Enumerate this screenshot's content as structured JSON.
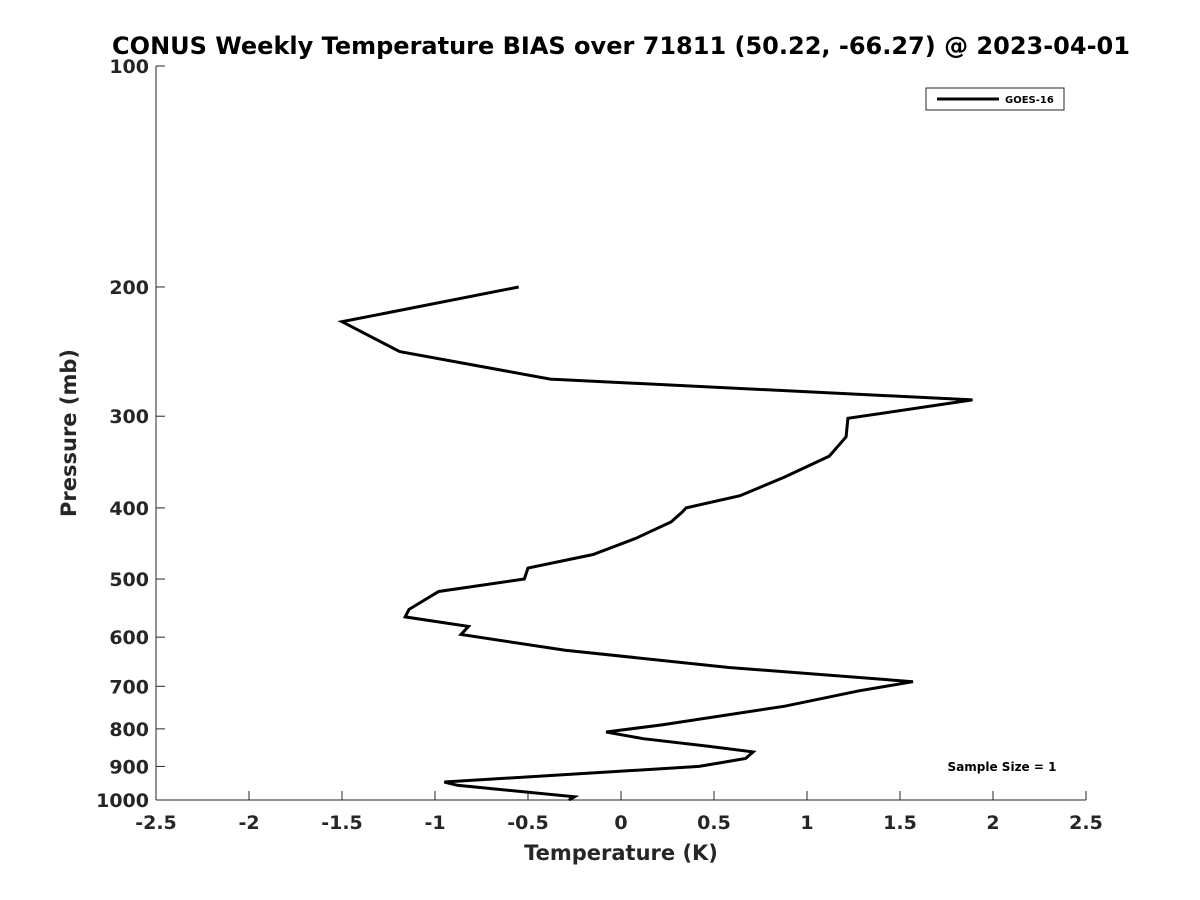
{
  "chart_data": {
    "type": "line",
    "title": "CONUS Weekly Temperature BIAS over 71811 (50.22, -66.27) @ 2023-04-01",
    "xlabel": "Temperature (K)",
    "ylabel": "Pressure (mb)",
    "xlim": [
      -2.5,
      2.5
    ],
    "ylim": [
      100,
      1000
    ],
    "y_scale": "log",
    "y_reversed": true,
    "x_ticks": [
      -2.5,
      -2,
      -1.5,
      -1,
      -0.5,
      0,
      0.5,
      1,
      1.5,
      2,
      2.5
    ],
    "x_tick_labels": [
      "-2.5",
      "-2",
      "-1.5",
      "-1",
      "-0.5",
      "0",
      "0.5",
      "1",
      "1.5",
      "2",
      "2.5"
    ],
    "y_ticks": [
      100,
      200,
      300,
      400,
      500,
      600,
      700,
      800,
      900,
      1000
    ],
    "y_tick_labels": [
      "100",
      "200",
      "300",
      "400",
      "500",
      "600",
      "700",
      "800",
      "900",
      "1000"
    ],
    "grid": false,
    "legend_position": "top-right",
    "series": [
      {
        "name": "GOES-16",
        "color": "#000000",
        "x": [
          -0.55,
          -1.5,
          -1.19,
          -0.38,
          1.89,
          1.22,
          1.21,
          1.12,
          0.88,
          0.64,
          0.35,
          0.33,
          0.27,
          0.08,
          -0.15,
          -0.5,
          -0.52,
          -0.98,
          -1.14,
          -1.16,
          -0.82,
          -0.86,
          -0.3,
          0.58,
          1.57,
          1.28,
          0.88,
          0.22,
          -0.08,
          0.12,
          0.47,
          0.71,
          0.67,
          0.42,
          -0.95,
          -0.88,
          -0.25,
          -0.28
        ],
        "y": [
          200,
          223,
          245,
          267,
          285,
          302,
          320,
          340,
          363,
          385,
          400,
          405,
          418,
          440,
          463,
          483,
          500,
          520,
          550,
          563,
          580,
          595,
          625,
          660,
          690,
          710,
          745,
          790,
          808,
          825,
          845,
          860,
          878,
          900,
          945,
          955,
          990,
          1000
        ]
      }
    ],
    "annotations": [
      "Sample Size = 1"
    ]
  }
}
